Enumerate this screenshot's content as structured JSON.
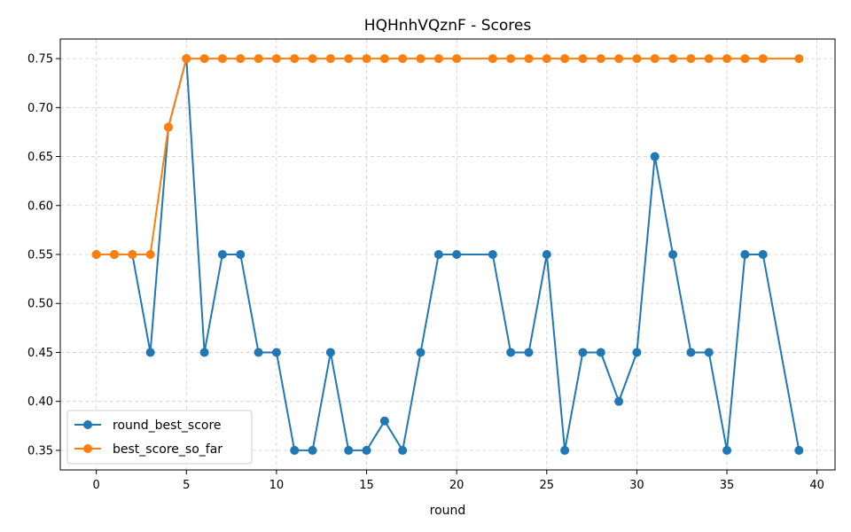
{
  "chart_data": {
    "type": "line",
    "title": "HQHnhVQznF - Scores",
    "xlabel": "round",
    "ylabel": "",
    "xlim": [
      -2,
      41
    ],
    "ylim": [
      0.33,
      0.77
    ],
    "x_ticks": [
      0,
      5,
      10,
      15,
      20,
      25,
      30,
      35,
      40
    ],
    "y_ticks": [
      0.35,
      0.4,
      0.45,
      0.5,
      0.55,
      0.6,
      0.65,
      0.7,
      0.75
    ],
    "grid": true,
    "legend_position": "bottom-left",
    "series": [
      {
        "name": "round_best_score",
        "color": "#1f77b4",
        "points": [
          [
            0,
            0.55
          ],
          [
            1,
            0.55
          ],
          [
            2,
            0.55
          ],
          [
            3,
            0.45
          ],
          [
            4,
            0.68
          ],
          [
            5,
            0.75
          ],
          [
            6,
            0.45
          ],
          [
            7,
            0.55
          ],
          [
            8,
            0.55
          ],
          [
            9,
            0.45
          ],
          [
            10,
            0.45
          ],
          [
            11,
            0.35
          ],
          [
            12,
            0.35
          ],
          [
            13,
            0.45
          ],
          [
            14,
            0.35
          ],
          [
            15,
            0.35
          ],
          [
            16,
            0.38
          ],
          [
            17,
            0.35
          ],
          [
            18,
            0.45
          ],
          [
            19,
            0.55
          ],
          [
            20,
            0.55
          ],
          [
            22,
            0.55
          ],
          [
            23,
            0.45
          ],
          [
            24,
            0.45
          ],
          [
            25,
            0.55
          ],
          [
            26,
            0.35
          ],
          [
            27,
            0.45
          ],
          [
            28,
            0.45
          ],
          [
            29,
            0.4
          ],
          [
            30,
            0.45
          ],
          [
            31,
            0.65
          ],
          [
            32,
            0.55
          ],
          [
            33,
            0.45
          ],
          [
            34,
            0.45
          ],
          [
            35,
            0.35
          ],
          [
            36,
            0.55
          ],
          [
            37,
            0.55
          ],
          [
            39,
            0.35
          ]
        ]
      },
      {
        "name": "best_score_so_far",
        "color": "#ff7f0e",
        "points": [
          [
            0,
            0.55
          ],
          [
            1,
            0.55
          ],
          [
            2,
            0.55
          ],
          [
            3,
            0.55
          ],
          [
            4,
            0.68
          ],
          [
            5,
            0.75
          ],
          [
            6,
            0.75
          ],
          [
            7,
            0.75
          ],
          [
            8,
            0.75
          ],
          [
            9,
            0.75
          ],
          [
            10,
            0.75
          ],
          [
            11,
            0.75
          ],
          [
            12,
            0.75
          ],
          [
            13,
            0.75
          ],
          [
            14,
            0.75
          ],
          [
            15,
            0.75
          ],
          [
            16,
            0.75
          ],
          [
            17,
            0.75
          ],
          [
            18,
            0.75
          ],
          [
            19,
            0.75
          ],
          [
            20,
            0.75
          ],
          [
            22,
            0.75
          ],
          [
            23,
            0.75
          ],
          [
            24,
            0.75
          ],
          [
            25,
            0.75
          ],
          [
            26,
            0.75
          ],
          [
            27,
            0.75
          ],
          [
            28,
            0.75
          ],
          [
            29,
            0.75
          ],
          [
            30,
            0.75
          ],
          [
            31,
            0.75
          ],
          [
            32,
            0.75
          ],
          [
            33,
            0.75
          ],
          [
            34,
            0.75
          ],
          [
            35,
            0.75
          ],
          [
            36,
            0.75
          ],
          [
            37,
            0.75
          ],
          [
            39,
            0.75
          ]
        ]
      }
    ]
  }
}
